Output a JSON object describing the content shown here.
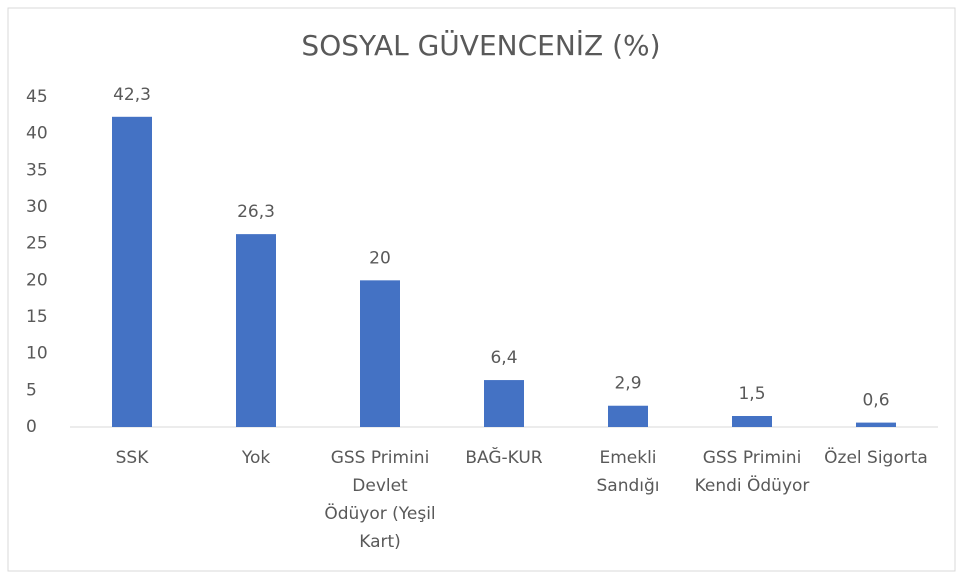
{
  "chart_data": {
    "type": "bar",
    "title": "SOSYAL GÜVENCENİZ (%)",
    "categories": [
      "SSK",
      "Yok",
      "GSS Primini Devlet Ödüyor (Yeşil Kart)",
      "BAĞ-KUR",
      "Emekli Sandığı",
      "GSS Primini Kendi Ödüyor",
      "Özel Sigorta"
    ],
    "values": [
      42.3,
      26.3,
      20,
      6.4,
      2.9,
      1.5,
      0.6
    ],
    "value_labels": [
      "42,3",
      "26,3",
      "20",
      "6,4",
      "2,9",
      "1,5",
      "0,6"
    ],
    "color": "#4472c4",
    "ylim": [
      0,
      45
    ],
    "yticks": [
      0,
      5,
      10,
      15,
      20,
      25,
      30,
      35,
      40,
      45
    ],
    "grid": false
  }
}
